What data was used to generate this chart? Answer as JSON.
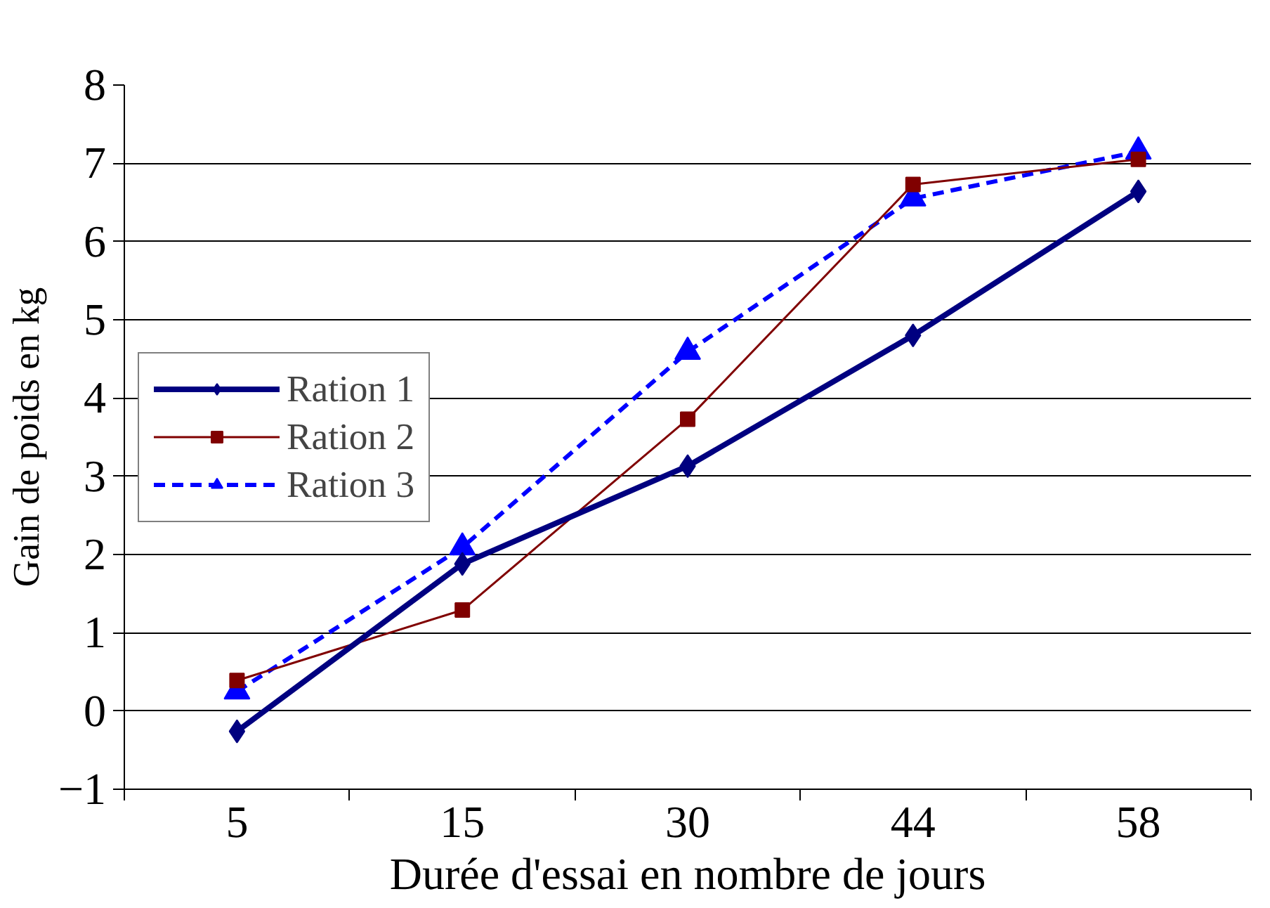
{
  "chart_data": {
    "type": "line",
    "xlabel": "Durée d'essai en nombre de jours",
    "ylabel": "Gain de poids en kg",
    "categories": [
      "5",
      "15",
      "30",
      "44",
      "58"
    ],
    "ylim": [
      -1,
      8
    ],
    "yticks": [
      -1,
      0,
      1,
      2,
      3,
      4,
      5,
      6,
      7,
      8
    ],
    "grid": "y",
    "legend": "left",
    "series": [
      {
        "name": "Ration 1",
        "color": "#000080",
        "marker": "diamond",
        "line_style": "solid",
        "values": [
          -0.26,
          1.88,
          3.13,
          4.8,
          6.64
        ]
      },
      {
        "name": "Ration 2",
        "color": "#800000",
        "marker": "square",
        "line_style": "solid",
        "values": [
          0.39,
          1.29,
          3.73,
          6.73,
          7.05
        ]
      },
      {
        "name": "Ration 3",
        "color": "#0000ff",
        "marker": "triangle",
        "line_style": "dashed",
        "values": [
          0.25,
          2.09,
          4.59,
          6.55,
          7.15
        ]
      }
    ]
  }
}
